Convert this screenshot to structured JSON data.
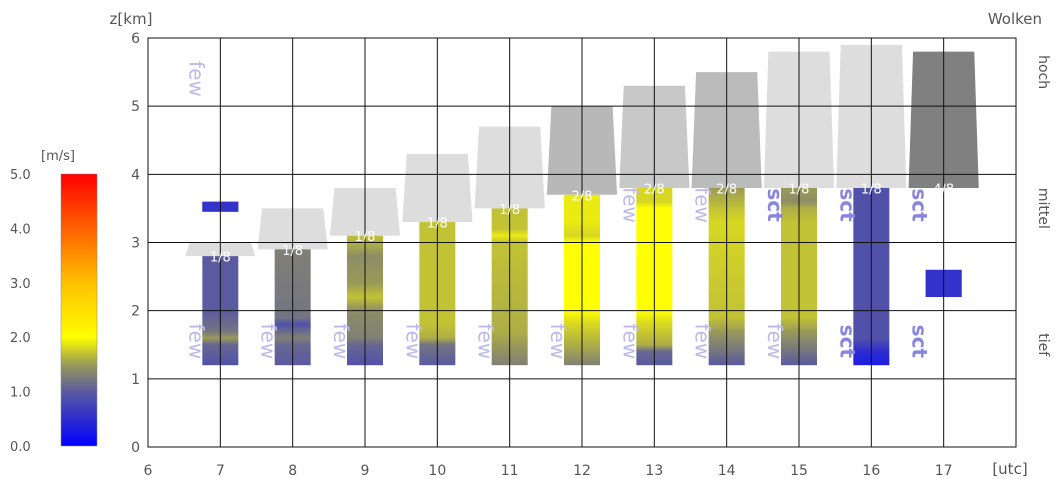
{
  "chart_data": {
    "type": "cloud-profile",
    "title": "Wolken",
    "ylabel": "z[km]",
    "xlabel": "[utc]",
    "xlim": [
      6,
      18
    ],
    "ylim": [
      0,
      6
    ],
    "x_ticks": [
      "6",
      "7",
      "8",
      "9",
      "10",
      "11",
      "12",
      "13",
      "14",
      "15",
      "16",
      "17"
    ],
    "y_ticks": [
      "0",
      "1",
      "2",
      "3",
      "4",
      "5",
      "6"
    ],
    "grid": true,
    "layer_labels": [
      {
        "label": "hoch",
        "z": 5.5
      },
      {
        "label": "mittel",
        "z": 3.5
      },
      {
        "label": "tief",
        "z": 1.5
      }
    ],
    "colorbar": {
      "label": "[m/s]",
      "min": 0,
      "max": 5,
      "ticks": [
        "0.0",
        "1.0",
        "2.0",
        "3.0",
        "4.0",
        "5.0"
      ]
    },
    "hours": [
      {
        "x": 7,
        "base": 1.2,
        "top": 2.8,
        "cap_top": 3.0,
        "coverage": "1/8",
        "cap_color": "#dddddd",
        "low_type": "few",
        "mid_type": "",
        "high_type": "few",
        "stops": [
          [
            1.2,
            0.9
          ],
          [
            1.5,
            1.1
          ],
          [
            1.6,
            1.5
          ],
          [
            1.7,
            1.2
          ],
          [
            2.0,
            1.0
          ],
          [
            2.8,
            1.0
          ]
        ]
      },
      {
        "x": 8,
        "base": 1.2,
        "top": 2.9,
        "cap_top": 3.5,
        "coverage": "1/8",
        "cap_color": "#dddddd",
        "low_type": "few",
        "mid_type": "",
        "high_type": "",
        "stops": [
          [
            1.2,
            1.0
          ],
          [
            1.5,
            1.1
          ],
          [
            1.6,
            1.3
          ],
          [
            1.8,
            0.9
          ],
          [
            1.9,
            1.2
          ],
          [
            2.9,
            1.3
          ]
        ]
      },
      {
        "x": 9,
        "base": 1.2,
        "top": 3.1,
        "cap_top": 3.8,
        "coverage": "1/8",
        "cap_color": "#dddddd",
        "low_type": "few",
        "mid_type": "",
        "high_type": "",
        "stops": [
          [
            1.2,
            0.9
          ],
          [
            1.5,
            1.1
          ],
          [
            1.6,
            1.3
          ],
          [
            2.0,
            1.4
          ],
          [
            2.2,
            1.7
          ],
          [
            2.4,
            1.5
          ],
          [
            2.8,
            1.4
          ],
          [
            3.1,
            1.7
          ]
        ]
      },
      {
        "x": 10,
        "base": 1.2,
        "top": 3.3,
        "cap_top": 4.3,
        "coverage": "1/8",
        "cap_color": "#dddddd",
        "low_type": "few",
        "mid_type": "",
        "high_type": "",
        "stops": [
          [
            1.2,
            1.0
          ],
          [
            1.5,
            1.2
          ],
          [
            1.6,
            1.6
          ],
          [
            1.8,
            1.7
          ],
          [
            3.3,
            1.7
          ]
        ]
      },
      {
        "x": 11,
        "base": 1.2,
        "top": 3.5,
        "cap_top": 4.7,
        "coverage": "1/8",
        "cap_color": "#dddddd",
        "low_type": "few",
        "mid_type": "",
        "high_type": "",
        "stops": [
          [
            1.2,
            1.3
          ],
          [
            1.5,
            1.5
          ],
          [
            1.7,
            1.6
          ],
          [
            3.0,
            1.7
          ],
          [
            3.1,
            1.9
          ],
          [
            3.2,
            1.7
          ],
          [
            3.5,
            1.7
          ]
        ]
      },
      {
        "x": 12,
        "base": 1.2,
        "top": 3.7,
        "cap_top": 5.0,
        "coverage": "2/8",
        "cap_color": "#b8b8b8",
        "low_type": "few",
        "mid_type": "",
        "high_type": "",
        "stops": [
          [
            1.2,
            1.3
          ],
          [
            1.5,
            1.6
          ],
          [
            1.8,
            1.8
          ],
          [
            2.0,
            2.0
          ],
          [
            3.0,
            2.0
          ],
          [
            3.1,
            1.8
          ],
          [
            3.3,
            1.9
          ],
          [
            3.7,
            1.9
          ]
        ]
      },
      {
        "x": 13,
        "base": 1.2,
        "top": 3.8,
        "cap_top": 5.3,
        "coverage": "2/8",
        "cap_color": "#c8c8c8",
        "low_type": "few",
        "mid_type": "few",
        "high_type": "",
        "stops": [
          [
            1.2,
            1.0
          ],
          [
            1.4,
            1.1
          ],
          [
            1.5,
            1.6
          ],
          [
            1.8,
            1.8
          ],
          [
            2.0,
            2.0
          ],
          [
            3.5,
            2.0
          ],
          [
            3.6,
            1.8
          ],
          [
            3.8,
            1.8
          ]
        ]
      },
      {
        "x": 14,
        "base": 1.2,
        "top": 3.8,
        "cap_top": 5.5,
        "coverage": "2/8",
        "cap_color": "#bbbbbb",
        "low_type": "few",
        "mid_type": "few",
        "high_type": "",
        "stops": [
          [
            1.2,
            1.0
          ],
          [
            1.4,
            1.2
          ],
          [
            1.7,
            1.5
          ],
          [
            1.9,
            1.7
          ],
          [
            3.3,
            1.8
          ],
          [
            3.5,
            1.7
          ],
          [
            3.8,
            1.5
          ]
        ]
      },
      {
        "x": 15,
        "base": 1.2,
        "top": 3.8,
        "cap_top": 5.8,
        "coverage": "1/8",
        "cap_color": "#dddddd",
        "low_type": "few",
        "mid_type": "sct",
        "high_type": "",
        "stops": [
          [
            1.2,
            1.0
          ],
          [
            1.4,
            1.2
          ],
          [
            1.7,
            1.5
          ],
          [
            1.9,
            1.7
          ],
          [
            3.3,
            1.7
          ],
          [
            3.5,
            1.6
          ],
          [
            3.6,
            1.4
          ],
          [
            3.8,
            1.5
          ]
        ]
      },
      {
        "x": 16,
        "base": 1.2,
        "top": 3.8,
        "cap_top": 5.9,
        "coverage": "1/8",
        "cap_color": "#dddddd",
        "low_type": "sct",
        "mid_type": "sct",
        "high_type": "",
        "stops": [
          [
            1.2,
            0.3
          ],
          [
            1.4,
            0.5
          ],
          [
            1.6,
            0.9
          ],
          [
            3.8,
            0.9
          ]
        ]
      },
      {
        "x": 17,
        "base": 3.8,
        "top": 3.8,
        "cap_top": 5.8,
        "coverage": "4/8",
        "cap_color": "#808080",
        "low_type": "sct",
        "mid_type": "sct",
        "high_type": "",
        "stops": []
      }
    ],
    "wind_markers": [
      {
        "x": 7,
        "z_low": 3.45,
        "z_high": 3.6,
        "width": 0.25,
        "value": 0.4
      },
      {
        "x": 17,
        "z_low": 2.2,
        "z_high": 2.6,
        "width": 0.25,
        "value": 0.4
      }
    ]
  },
  "colors": {
    "grid": "#111111",
    "type_label": "#bdb9ea",
    "type_label_strong": "#8a86e0",
    "marker": "#3333cc"
  }
}
